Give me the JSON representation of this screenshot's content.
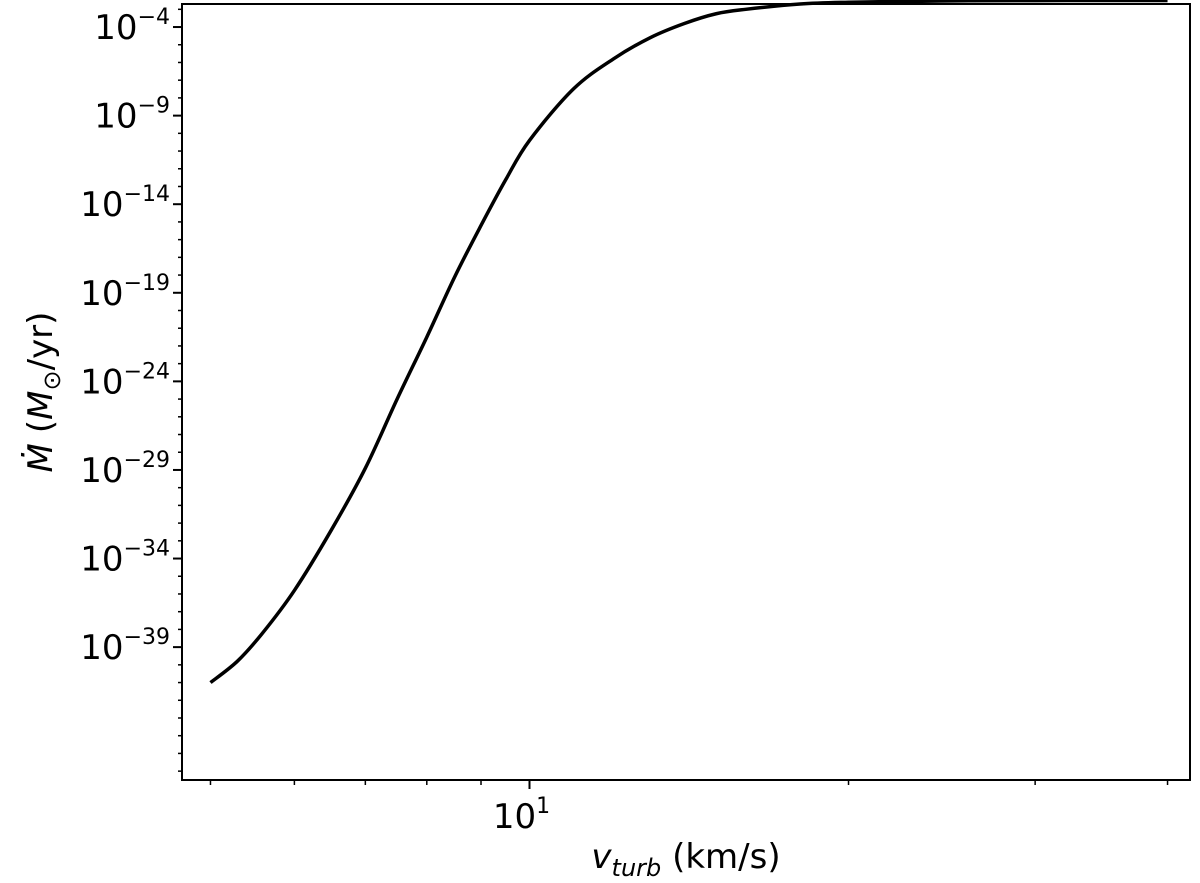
{
  "chart_data": {
    "type": "line",
    "title": "",
    "xlabel": {
      "var": "v",
      "sub": "turb",
      "unit": " (km/s)"
    },
    "ylabel": {
      "pre": "(",
      "var": "M",
      "sub": "⊙",
      "post": "/yr)",
      "symbol": "Ṁ"
    },
    "xscale": "log",
    "yscale": "log",
    "xlim": [
      4.7,
      42.0
    ],
    "ylim_exp": [
      -46.5,
      -2.7
    ],
    "grid": false,
    "legend": "none",
    "x_ticks": [
      {
        "base": "10",
        "exp": "1",
        "value": 10
      }
    ],
    "y_ticks": [
      {
        "base": "10",
        "exp": "−4",
        "value": -4
      },
      {
        "base": "10",
        "exp": "−9",
        "value": -9
      },
      {
        "base": "10",
        "exp": "−14",
        "value": -14
      },
      {
        "base": "10",
        "exp": "−19",
        "value": -19
      },
      {
        "base": "10",
        "exp": "−24",
        "value": -24
      },
      {
        "base": "10",
        "exp": "−29",
        "value": -29
      },
      {
        "base": "10",
        "exp": "−34",
        "value": -34
      },
      {
        "base": "10",
        "exp": "−39",
        "value": -39
      }
    ],
    "series": [
      {
        "color": "#000000",
        "x": [
          5.0,
          5.3,
          5.6,
          6.0,
          6.5,
          7.0,
          7.5,
          8.0,
          8.5,
          9.0,
          9.5,
          10.0,
          11.0,
          12.0,
          13.0,
          14.0,
          15.0,
          16.0,
          18.0,
          20.0,
          23.0,
          26.0,
          30.0,
          35.0,
          40.0
        ],
        "y_exp": [
          -41.0,
          -39.8,
          -38.2,
          -35.8,
          -32.4,
          -28.9,
          -25.0,
          -21.5,
          -18.1,
          -15.2,
          -12.6,
          -10.4,
          -7.5,
          -5.8,
          -4.6,
          -3.8,
          -3.25,
          -3.0,
          -2.7,
          -2.6,
          -2.55,
          -2.52,
          -2.51,
          -2.5,
          -2.5
        ]
      }
    ]
  }
}
